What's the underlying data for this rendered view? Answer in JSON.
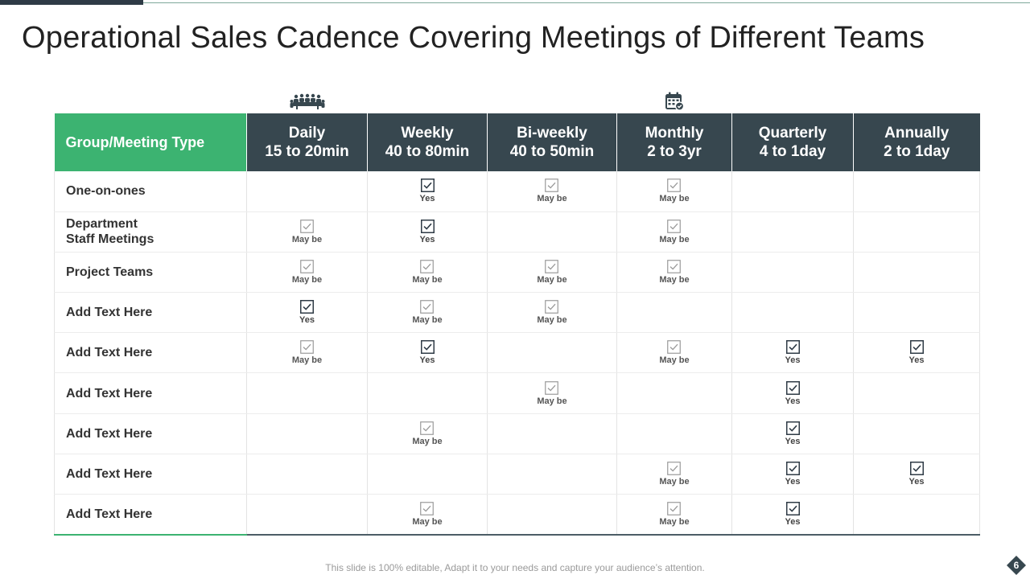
{
  "slide": {
    "title": "Operational Sales Cadence Covering Meetings of Different Teams",
    "footer": "This slide is 100% editable, Adapt it to your needs and capture your audience’s attention.",
    "page_number": "6"
  },
  "icons": {
    "team_meeting": "team-meeting-icon",
    "calendar": "calendar-check-icon",
    "checkbox": "checkbox-icon"
  },
  "colors": {
    "header_dark": "#37474f",
    "header_green": "#3cb371",
    "check_strong": "#2f3b46",
    "check_light": "#9a9a9a"
  },
  "table": {
    "corner_label": "Group/Meeting Type",
    "columns": [
      {
        "name": "Daily",
        "duration": "15 to 20min"
      },
      {
        "name": "Weekly",
        "duration": "40 to 80min"
      },
      {
        "name": "Bi-weekly",
        "duration": "40 to 50min"
      },
      {
        "name": "Monthly",
        "duration": "2 to 3yr"
      },
      {
        "name": "Quarterly",
        "duration": "4 to 1day"
      },
      {
        "name": "Annually",
        "duration": "2 to 1day"
      }
    ],
    "rows": [
      {
        "label": "One-on-ones",
        "cells": [
          "",
          "Yes",
          "May be",
          "May be",
          "",
          ""
        ]
      },
      {
        "label": "Department\nStaff Meetings",
        "cells": [
          "May be",
          "Yes",
          "",
          "May be",
          "",
          ""
        ]
      },
      {
        "label": "Project Teams",
        "cells": [
          "May be",
          "May be",
          "May be",
          "May be",
          "",
          ""
        ]
      },
      {
        "label": "Add Text Here",
        "cells": [
          "Yes",
          "May be",
          "May be",
          "",
          "",
          ""
        ]
      },
      {
        "label": "Add Text Here",
        "cells": [
          "May be",
          "Yes",
          "",
          "May be",
          "Yes",
          "Yes"
        ]
      },
      {
        "label": "Add Text Here",
        "cells": [
          "",
          "",
          "May be",
          "",
          "Yes",
          ""
        ]
      },
      {
        "label": "Add Text Here",
        "cells": [
          "",
          "May be",
          "",
          "",
          "Yes",
          ""
        ]
      },
      {
        "label": "Add Text Here",
        "cells": [
          "",
          "",
          "",
          "May be",
          "Yes",
          "Yes"
        ]
      },
      {
        "label": "Add Text Here",
        "cells": [
          "",
          "May be",
          "",
          "May be",
          "Yes",
          ""
        ]
      }
    ]
  }
}
